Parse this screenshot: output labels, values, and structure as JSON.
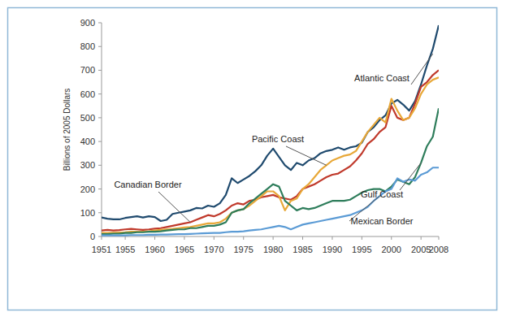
{
  "chart_data": {
    "type": "line",
    "y_label": "Billions of 2005 Dollars",
    "x": [
      1951,
      1952,
      1953,
      1954,
      1955,
      1956,
      1957,
      1958,
      1959,
      1960,
      1961,
      1962,
      1963,
      1964,
      1965,
      1966,
      1967,
      1968,
      1969,
      1970,
      1971,
      1972,
      1973,
      1974,
      1975,
      1976,
      1977,
      1978,
      1979,
      1980,
      1981,
      1982,
      1983,
      1984,
      1985,
      1986,
      1987,
      1988,
      1989,
      1990,
      1991,
      1992,
      1993,
      1994,
      1995,
      1996,
      1997,
      1998,
      1999,
      2000,
      2001,
      2002,
      2003,
      2004,
      2005,
      2006,
      2007,
      2008
    ],
    "xlim": [
      1951,
      2008
    ],
    "xticks": [
      1951,
      1955,
      1960,
      1965,
      1970,
      1975,
      1980,
      1985,
      1990,
      1995,
      2000,
      2005,
      2008
    ],
    "ylim": [
      0,
      900
    ],
    "yticks": [
      0,
      100,
      200,
      300,
      400,
      500,
      600,
      700,
      800,
      900
    ],
    "grid": false,
    "series": [
      {
        "name": "Atlantic Coast",
        "color": "#1f4a6e",
        "values": [
          80,
          75,
          72,
          72,
          78,
          82,
          85,
          80,
          85,
          82,
          65,
          70,
          95,
          100,
          105,
          110,
          120,
          118,
          130,
          125,
          140,
          175,
          245,
          225,
          240,
          255,
          275,
          300,
          340,
          370,
          335,
          300,
          280,
          310,
          300,
          320,
          330,
          350,
          360,
          365,
          375,
          365,
          375,
          380,
          395,
          440,
          460,
          490,
          510,
          560,
          575,
          555,
          530,
          570,
          640,
          720,
          790,
          890
        ]
      },
      {
        "name": "Canadian Border",
        "color": "#c0392b",
        "values": [
          25,
          28,
          25,
          27,
          30,
          32,
          30,
          28,
          30,
          33,
          35,
          40,
          45,
          50,
          55,
          60,
          70,
          80,
          90,
          85,
          95,
          110,
          130,
          140,
          135,
          150,
          155,
          165,
          170,
          175,
          165,
          160,
          155,
          170,
          200,
          210,
          220,
          235,
          250,
          260,
          265,
          280,
          295,
          320,
          350,
          390,
          410,
          440,
          460,
          550,
          500,
          490,
          500,
          560,
          630,
          650,
          680,
          700
        ]
      },
      {
        "name": "Pacific Coast",
        "color": "#e8a838",
        "values": [
          15,
          15,
          16,
          17,
          18,
          20,
          20,
          20,
          22,
          25,
          28,
          30,
          32,
          35,
          38,
          40,
          45,
          50,
          55,
          55,
          60,
          75,
          100,
          110,
          115,
          130,
          150,
          170,
          190,
          190,
          170,
          110,
          150,
          160,
          200,
          220,
          250,
          280,
          300,
          320,
          330,
          340,
          345,
          360,
          400,
          440,
          470,
          500,
          480,
          580,
          530,
          490,
          500,
          540,
          600,
          640,
          660,
          670
        ]
      },
      {
        "name": "Gulf Coast",
        "color": "#2e7d5b",
        "values": [
          10,
          10,
          12,
          12,
          15,
          15,
          18,
          18,
          20,
          20,
          22,
          25,
          28,
          30,
          30,
          35,
          35,
          40,
          45,
          45,
          50,
          60,
          100,
          110,
          115,
          140,
          160,
          180,
          200,
          220,
          210,
          150,
          130,
          110,
          120,
          115,
          120,
          130,
          140,
          150,
          150,
          150,
          155,
          170,
          185,
          195,
          200,
          200,
          190,
          210,
          240,
          230,
          220,
          250,
          310,
          380,
          420,
          540
        ]
      },
      {
        "name": "Mexican Border",
        "color": "#5b9bd5",
        "values": [
          5,
          5,
          5,
          5,
          5,
          6,
          6,
          6,
          7,
          7,
          8,
          8,
          9,
          10,
          10,
          11,
          12,
          13,
          14,
          15,
          15,
          18,
          20,
          20,
          22,
          25,
          28,
          30,
          35,
          40,
          45,
          40,
          30,
          40,
          50,
          55,
          60,
          65,
          70,
          75,
          80,
          85,
          90,
          100,
          110,
          125,
          150,
          170,
          190,
          200,
          245,
          230,
          240,
          235,
          260,
          270,
          290,
          290
        ]
      }
    ]
  }
}
